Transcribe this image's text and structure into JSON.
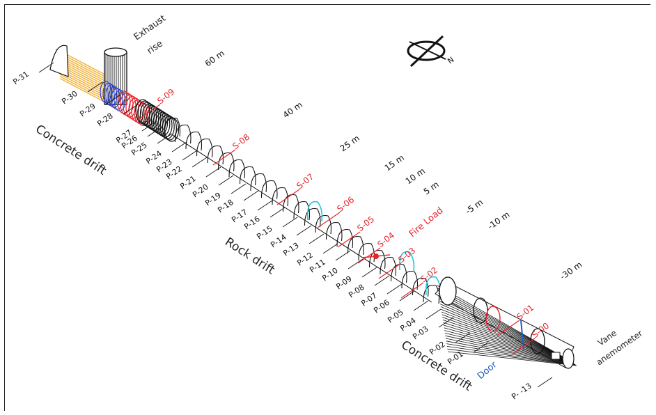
{
  "labels": {
    "exhaust": [
      "Exhaust",
      "rise"
    ],
    "concrete_top": "Concrete drift",
    "concrete_bottom": "Concrete drift",
    "rock": "Rock drift",
    "fire_load": "Fire Load",
    "door": "Door",
    "vane": [
      "Vane",
      "anemometer"
    ]
  },
  "distances": [
    "60 m",
    "40 m",
    "25 m",
    "15 m",
    "10 m",
    "5 m",
    "-5 m",
    "-10 m",
    "-30 m"
  ],
  "sensors": [
    "S-09",
    "S-08",
    "S-07",
    "S-06",
    "S-05",
    "S-04",
    "S-03",
    "S-02",
    "S-01",
    "S-00"
  ],
  "profiles": [
    "P-31",
    "P-30",
    "P-29",
    "P-28",
    "P-27",
    "P-26",
    "P-25",
    "P-24",
    "P-23",
    "P-22",
    "P-21",
    "P-20",
    "P-19",
    "P-18",
    "P-17",
    "P-16",
    "P-15",
    "P-14",
    "P-13",
    "P-12",
    "P-11",
    "P-10",
    "P-09",
    "P-08",
    "P-07",
    "P-06",
    "P-05",
    "P-04",
    "P-03",
    "P-02",
    "P-01",
    "P- -13"
  ],
  "compass": {
    "north": "N"
  },
  "colors": {
    "sensor": "#e8232a",
    "door": "#1f5fbf",
    "vent": "#f2b13a",
    "blue_ring": "#2a3fd0",
    "cyan": "#22c4d8",
    "ink": "#111111"
  }
}
